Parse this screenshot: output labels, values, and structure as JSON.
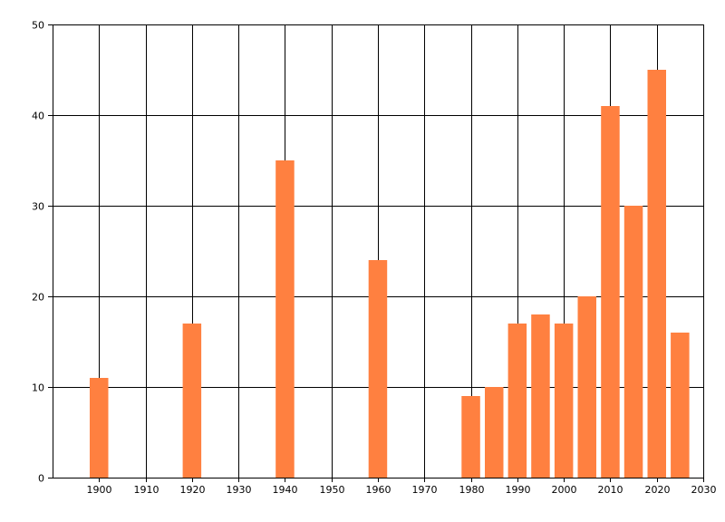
{
  "chart_data": {
    "type": "bar",
    "title": "",
    "xlabel": "",
    "ylabel": "",
    "x": [
      1900,
      1920,
      1940,
      1960,
      1980,
      1985,
      1990,
      1995,
      2000,
      2005,
      2010,
      2015,
      2020,
      2025
    ],
    "values": [
      11,
      17,
      35,
      24,
      9,
      10,
      17,
      18,
      17,
      20,
      41,
      30,
      45,
      16
    ],
    "xlim": [
      1890,
      2030
    ],
    "ylim": [
      0,
      50
    ],
    "x_ticks": [
      1900,
      1910,
      1920,
      1930,
      1940,
      1950,
      1960,
      1970,
      1980,
      1990,
      2000,
      2010,
      2020,
      2030
    ],
    "y_ticks": [
      0,
      10,
      20,
      30,
      40,
      50
    ],
    "grid": true,
    "bar_color": "#ff8040"
  }
}
